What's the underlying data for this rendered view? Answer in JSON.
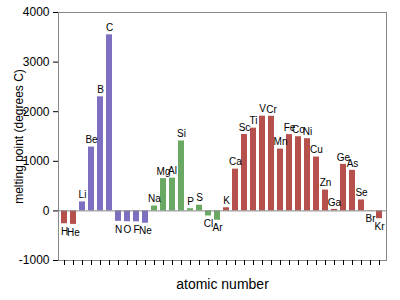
{
  "chart_data": {
    "type": "bar",
    "x_label": "atomic number",
    "y_label": "melting point (degrees C)",
    "categories": [
      "H",
      "He",
      "Li",
      "Be",
      "B",
      "C",
      "N",
      "O",
      "F",
      "Ne",
      "Na",
      "Mg",
      "Al",
      "Si",
      "P",
      "S",
      "Cl",
      "Ar",
      "K",
      "Ca",
      "Sc",
      "Ti",
      "V",
      "Cr",
      "Mn",
      "Fe",
      "Co",
      "Ni",
      "Cu",
      "Zn",
      "Ga",
      "Ge",
      "As",
      "Se",
      "Br",
      "Kr"
    ],
    "values": [
      -259,
      -272,
      181,
      1287,
      2300,
      3550,
      -210,
      -218,
      -220,
      -249,
      98,
      650,
      660,
      1410,
      44,
      115,
      -102,
      -189,
      63,
      842,
      1541,
      1668,
      1910,
      1907,
      1246,
      1538,
      1495,
      1455,
      1085,
      420,
      30,
      938,
      817,
      221,
      -7,
      -157
    ],
    "colors": [
      "#b6504c",
      "#b6504c",
      "#7f6fc0",
      "#7f6fc0",
      "#7f6fc0",
      "#7f6fc0",
      "#7f6fc0",
      "#7f6fc0",
      "#7f6fc0",
      "#7f6fc0",
      "#6aa964",
      "#6aa964",
      "#6aa964",
      "#6aa964",
      "#6aa964",
      "#6aa964",
      "#6aa964",
      "#6aa964",
      "#b6504c",
      "#b6504c",
      "#b6504c",
      "#b6504c",
      "#b6504c",
      "#b6504c",
      "#b6504c",
      "#b6504c",
      "#b6504c",
      "#b6504c",
      "#b6504c",
      "#b6504c",
      "#b6504c",
      "#b6504c",
      "#b6504c",
      "#b6504c",
      "#b6504c",
      "#b6504c"
    ],
    "ylim": [
      -1000,
      4000
    ],
    "yticks": [
      -1000,
      0,
      1000,
      2000,
      3000,
      4000
    ],
    "tick_labels": "y",
    "grid": false
  }
}
